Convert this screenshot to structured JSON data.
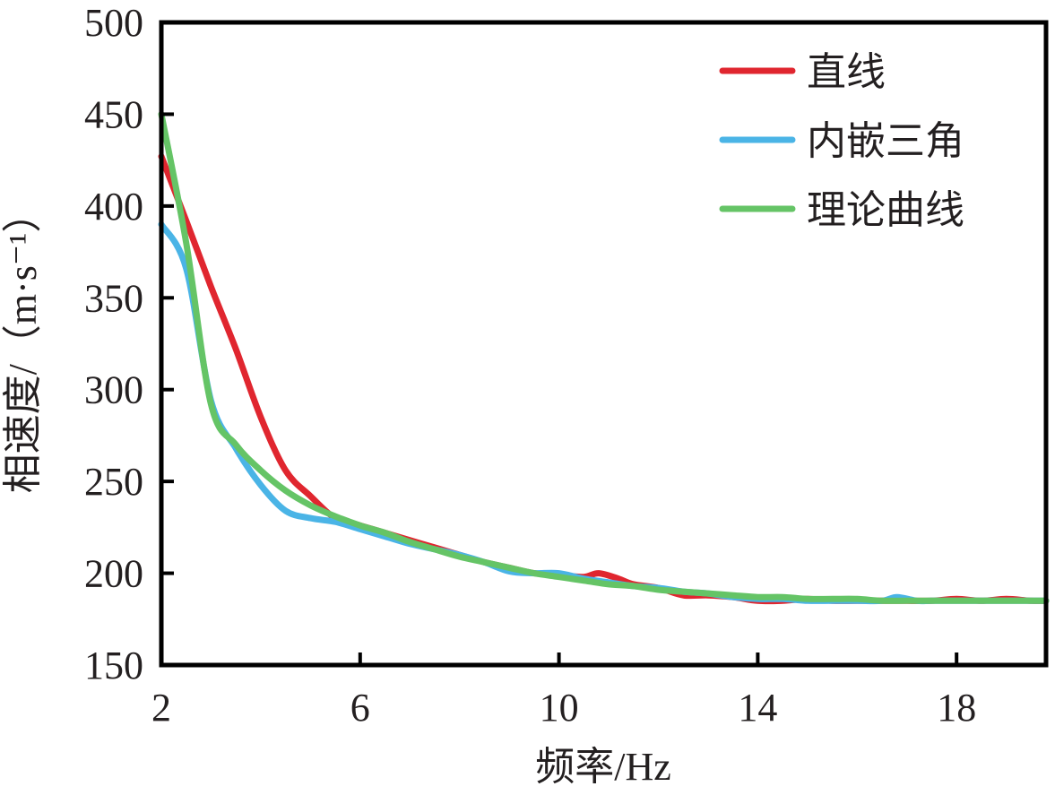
{
  "chart_data": {
    "type": "line",
    "xlabel": "频率/Hz",
    "ylabel": "相速度/（m·s⁻¹）",
    "xlim": [
      2,
      19.8
    ],
    "ylim": [
      150,
      500
    ],
    "xticks": [
      "2",
      "6",
      "10",
      "14",
      "18"
    ],
    "xtick_values": [
      2,
      6,
      10,
      14,
      18
    ],
    "yticks": [
      "150",
      "200",
      "250",
      "300",
      "350",
      "400",
      "450",
      "500"
    ],
    "ytick_values": [
      150,
      200,
      250,
      300,
      350,
      400,
      450,
      500
    ],
    "grid": false,
    "legend_position": "top-right",
    "series": [
      {
        "name": "直线",
        "color": "#e0262f",
        "points": [
          [
            2.0,
            427
          ],
          [
            2.5,
            392
          ],
          [
            3.0,
            356
          ],
          [
            3.5,
            322
          ],
          [
            4.0,
            285
          ],
          [
            4.5,
            256
          ],
          [
            5.0,
            242
          ],
          [
            5.5,
            230
          ],
          [
            6.0,
            226
          ],
          [
            6.5,
            222
          ],
          [
            7.0,
            218
          ],
          [
            7.5,
            214
          ],
          [
            8.0,
            210
          ],
          [
            8.5,
            206
          ],
          [
            9.0,
            203
          ],
          [
            9.5,
            200
          ],
          [
            10.0,
            199
          ],
          [
            10.5,
            198
          ],
          [
            10.8,
            200
          ],
          [
            11.2,
            197
          ],
          [
            11.5,
            194
          ],
          [
            12.0,
            192
          ],
          [
            12.5,
            188
          ],
          [
            13.0,
            188
          ],
          [
            13.5,
            187
          ],
          [
            14.0,
            185
          ],
          [
            14.5,
            185
          ],
          [
            15.0,
            186
          ],
          [
            15.5,
            185
          ],
          [
            16.0,
            185
          ],
          [
            16.5,
            185
          ],
          [
            17.0,
            185
          ],
          [
            17.5,
            185
          ],
          [
            18.0,
            186
          ],
          [
            18.5,
            185
          ],
          [
            19.0,
            186
          ],
          [
            19.5,
            185
          ],
          [
            19.8,
            185
          ]
        ]
      },
      {
        "name": "内嵌三角",
        "color": "#4ab4e6",
        "points": [
          [
            2.0,
            390
          ],
          [
            2.5,
            366
          ],
          [
            3.0,
            294
          ],
          [
            3.5,
            268
          ],
          [
            4.0,
            248
          ],
          [
            4.5,
            234
          ],
          [
            5.0,
            230
          ],
          [
            5.5,
            228
          ],
          [
            6.0,
            224
          ],
          [
            6.5,
            220
          ],
          [
            7.0,
            216
          ],
          [
            7.5,
            213
          ],
          [
            8.0,
            210
          ],
          [
            8.5,
            206
          ],
          [
            9.0,
            201
          ],
          [
            9.5,
            200
          ],
          [
            10.0,
            200
          ],
          [
            10.5,
            197
          ],
          [
            11.0,
            195
          ],
          [
            11.5,
            193
          ],
          [
            12.0,
            192
          ],
          [
            12.5,
            190
          ],
          [
            13.0,
            189
          ],
          [
            13.5,
            187
          ],
          [
            14.0,
            186
          ],
          [
            14.5,
            186
          ],
          [
            15.0,
            185
          ],
          [
            15.5,
            185
          ],
          [
            16.0,
            185
          ],
          [
            16.5,
            185
          ],
          [
            16.8,
            187
          ],
          [
            17.2,
            185
          ],
          [
            17.5,
            185
          ],
          [
            18.0,
            185
          ],
          [
            18.5,
            185
          ],
          [
            19.0,
            185
          ],
          [
            19.5,
            185
          ],
          [
            19.8,
            185
          ]
        ]
      },
      {
        "name": "理论曲线",
        "color": "#65c466",
        "points": [
          [
            2.0,
            450
          ],
          [
            2.5,
            380
          ],
          [
            3.0,
            292
          ],
          [
            3.5,
            270
          ],
          [
            4.0,
            256
          ],
          [
            4.5,
            245
          ],
          [
            5.0,
            237
          ],
          [
            5.5,
            231
          ],
          [
            6.0,
            226
          ],
          [
            6.5,
            222
          ],
          [
            7.0,
            217
          ],
          [
            7.5,
            213
          ],
          [
            8.0,
            209
          ],
          [
            8.5,
            206
          ],
          [
            9.0,
            203
          ],
          [
            9.5,
            200
          ],
          [
            10.0,
            198
          ],
          [
            10.5,
            196
          ],
          [
            11.0,
            194
          ],
          [
            11.5,
            193
          ],
          [
            12.0,
            191
          ],
          [
            12.5,
            190
          ],
          [
            13.0,
            189
          ],
          [
            13.5,
            188
          ],
          [
            14.0,
            187
          ],
          [
            14.5,
            187
          ],
          [
            15.0,
            186
          ],
          [
            15.5,
            186
          ],
          [
            16.0,
            186
          ],
          [
            16.5,
            185
          ],
          [
            17.0,
            185
          ],
          [
            17.5,
            185
          ],
          [
            18.0,
            185
          ],
          [
            18.5,
            185
          ],
          [
            19.0,
            185
          ],
          [
            19.5,
            185
          ],
          [
            19.8,
            185
          ]
        ]
      }
    ]
  }
}
